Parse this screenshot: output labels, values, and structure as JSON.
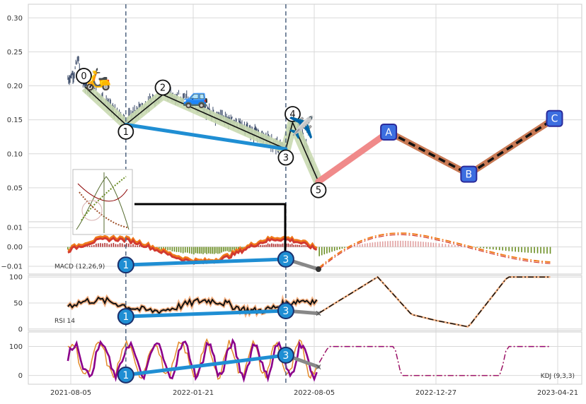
{
  "chart_data": {
    "type": "line",
    "x_tick_labels": [
      "2021-08-05",
      "2022-01-21",
      "2022-08-05",
      "2022-12-27",
      "2023-04-21"
    ],
    "x_tick_dates": [
      "2021-08-05",
      "2022-01-21",
      "2022-08-05",
      "2022-12-27",
      "2023-04-21"
    ],
    "grid": true,
    "vlines_dates": [
      "2021-10-20",
      "2022-06-20"
    ],
    "price_panel": {
      "ylim": [
        0.0,
        0.32
      ],
      "yticks": [
        "0.05",
        "0.10",
        "0.15",
        "0.20",
        "0.25",
        "0.30"
      ],
      "ytick_values": [
        0.05,
        0.1,
        0.15,
        0.2,
        0.25,
        0.3
      ],
      "price_series": [
        [
          "2021-08-01",
          0.21
        ],
        [
          "2021-08-10",
          0.22
        ],
        [
          "2021-08-15",
          0.24
        ],
        [
          "2021-08-20",
          0.21
        ],
        [
          "2021-08-25",
          0.2
        ],
        [
          "2021-09-01",
          0.195
        ],
        [
          "2021-09-10",
          0.19
        ],
        [
          "2021-09-20",
          0.18
        ],
        [
          "2021-10-01",
          0.165
        ],
        [
          "2021-10-10",
          0.155
        ],
        [
          "2021-10-20",
          0.15
        ],
        [
          "2021-11-01",
          0.16
        ],
        [
          "2021-11-15",
          0.17
        ],
        [
          "2021-12-01",
          0.18
        ],
        [
          "2021-12-10",
          0.19
        ],
        [
          "2021-12-25",
          0.185
        ],
        [
          "2022-01-10",
          0.18
        ],
        [
          "2022-01-25",
          0.17
        ],
        [
          "2022-02-10",
          0.165
        ],
        [
          "2022-03-01",
          0.155
        ],
        [
          "2022-03-20",
          0.15
        ],
        [
          "2022-04-10",
          0.14
        ],
        [
          "2022-05-01",
          0.13
        ],
        [
          "2022-05-20",
          0.12
        ],
        [
          "2022-06-10",
          0.11
        ],
        [
          "2022-06-20",
          0.11
        ],
        [
          "2022-06-25",
          0.135
        ],
        [
          "2022-07-01",
          0.15
        ],
        [
          "2022-07-10",
          0.14
        ],
        [
          "2022-07-20",
          0.12
        ],
        [
          "2022-07-30",
          0.085
        ],
        [
          "2022-08-10",
          0.065
        ]
      ],
      "wave_points": [
        {
          "label": "0",
          "date": "2021-08-25",
          "value": 0.198
        },
        {
          "label": "1",
          "date": "2021-10-20",
          "value": 0.143
        },
        {
          "label": "2",
          "date": "2021-12-10",
          "value": 0.187
        },
        {
          "label": "3",
          "date": "2022-06-20",
          "value": 0.107
        },
        {
          "label": "4",
          "date": "2022-07-01",
          "value": 0.146
        },
        {
          "label": "5",
          "date": "2022-08-10",
          "value": 0.059
        }
      ],
      "projection_points": [
        {
          "label": "A",
          "date": "2022-11-01",
          "value": 0.132
        },
        {
          "label": "B",
          "date": "2023-01-27",
          "value": 0.07
        },
        {
          "label": "C",
          "date": "2023-04-18",
          "value": 0.152
        }
      ],
      "divergence_line": {
        "from": {
          "date": "2021-10-20",
          "value": 0.143
        },
        "to": {
          "date": "2022-06-20",
          "value": 0.107
        }
      },
      "emojis": [
        {
          "icon": "scooter",
          "glyph": "🛵",
          "date": "2021-09-12",
          "value": 0.212
        },
        {
          "icon": "car",
          "glyph": "🚙",
          "date": "2022-01-25",
          "value": 0.186
        },
        {
          "icon": "airplane",
          "glyph": "✈️",
          "date": "2022-07-15",
          "value": 0.141
        }
      ]
    },
    "macd_panel": {
      "label": "MACD (12,26,9)",
      "ylim": [
        -0.014,
        0.013
      ],
      "yticks": [
        "0.01",
        "0.00",
        "−0.01"
      ],
      "ytick_values": [
        0.01,
        0.0,
        -0.01
      ],
      "divergence": {
        "point_1": {
          "label": "1",
          "date": "2021-10-20",
          "value": -0.0093
        },
        "point_3": {
          "label": "3",
          "date": "2022-06-20",
          "value": -0.0063
        },
        "end": {
          "date": "2022-08-10",
          "value": -0.0115
        }
      }
    },
    "rsi_panel": {
      "label": "RSI 14",
      "ylim": [
        -3,
        103
      ],
      "yticks": [
        "100",
        "50",
        "0"
      ],
      "ytick_values": [
        100,
        50,
        0
      ],
      "divergence": {
        "point_1": {
          "label": "1",
          "date": "2021-10-20",
          "value": 24
        },
        "point_3": {
          "label": "3",
          "date": "2022-06-20",
          "value": 35
        },
        "end": {
          "date": "2022-08-10",
          "value": 30
        }
      }
    },
    "kdj_panel": {
      "label": "KDJ (9,3,3)",
      "ylim": [
        -30,
        150
      ],
      "yticks": [
        "100",
        "0"
      ],
      "ytick_values": [
        100,
        0
      ],
      "divergence": {
        "point_1": {
          "label": "1",
          "date": "2021-10-20",
          "value": 2
        },
        "point_3": {
          "label": "3",
          "date": "2022-06-20",
          "value": 70
        },
        "end": {
          "date": "2022-08-10",
          "value": 30
        }
      }
    },
    "colors": {
      "grid": "#d9d9d9",
      "candles": "#3a4a68",
      "wave_fill": "#c9d9b0",
      "wave_line": "#111111",
      "blue_line": "#1f8ed3",
      "projection_pink": "#f08a8a",
      "projection_brown": "#c97a55",
      "projection_dash": "#111111",
      "marker_blue": "#3c6ee0",
      "marker_border": "#2a2a9a",
      "vline": "#5a6e88",
      "macd_red": "#d23a30",
      "macd_orange": "#f07a1a",
      "hist_green": "#6b8e23",
      "hist_red": "#b03030",
      "hist_pink": "#e0a0a0",
      "rsi_line": "#111111",
      "rsi_halo": "#f4b183",
      "kdj_purple": "#8b008b",
      "kdj_orange": "#e38a2a",
      "gray_line": "#888888"
    }
  }
}
